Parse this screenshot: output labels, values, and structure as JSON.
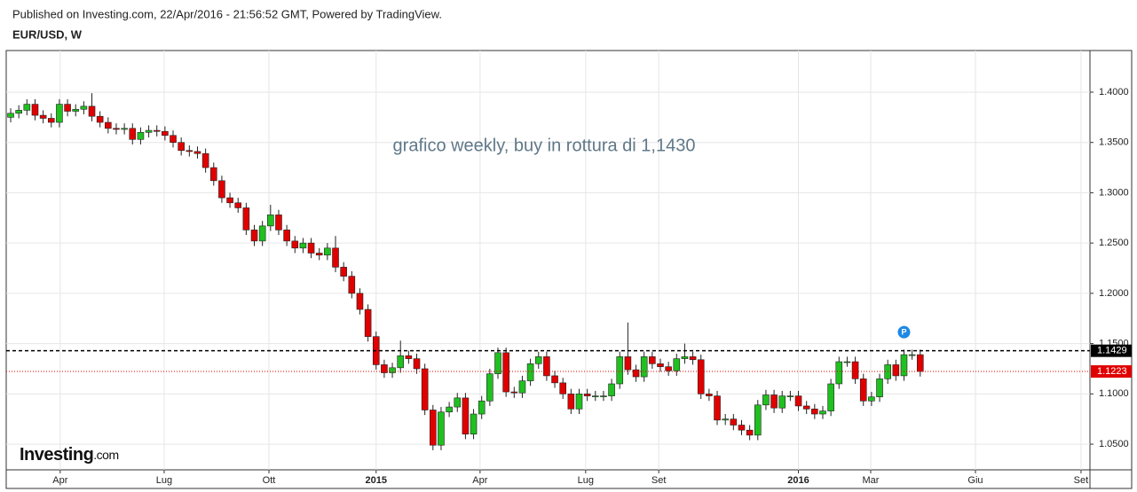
{
  "header": {
    "source": "Published on Investing.com, 22/Apr/2016 - 21:56:52 GMT, Powered by TradingView."
  },
  "chart_data": {
    "type": "candlestick",
    "title": "EUR/USD, W",
    "annotation": "grafico weekly, buy in rottura di 1,1430",
    "logo": {
      "name": "Investing",
      "suffix": ".com"
    },
    "up_color": "#20c020",
    "down_color": "#e00000",
    "grid": true,
    "open": [
      1.375,
      1.379,
      1.382,
      1.388,
      1.377,
      1.374,
      1.37,
      1.388,
      1.381,
      1.383,
      1.386,
      1.376,
      1.37,
      1.364,
      1.363,
      1.364,
      1.353,
      1.36,
      1.362,
      1.361,
      1.357,
      1.35,
      1.342,
      1.341,
      1.339,
      1.325,
      1.312,
      1.295,
      1.29,
      1.285,
      1.263,
      1.252,
      1.267,
      1.278,
      1.263,
      1.252,
      1.245,
      1.25,
      1.24,
      1.238,
      1.245,
      1.226,
      1.217,
      1.2,
      1.184,
      1.157,
      1.129,
      1.121,
      1.126,
      1.138,
      1.135,
      1.125,
      1.084,
      1.049,
      1.082,
      1.087,
      1.096,
      1.06,
      1.08,
      1.093,
      1.12,
      1.141,
      1.102,
      1.101,
      1.113,
      1.13,
      1.137,
      1.118,
      1.111,
      1.1,
      1.085,
      1.1,
      1.098,
      1.098,
      1.098,
      1.11,
      1.137,
      1.124,
      1.117,
      1.137,
      1.13,
      1.127,
      1.123,
      1.135,
      1.137,
      1.134,
      1.1,
      1.098,
      1.074,
      1.075,
      1.069,
      1.064,
      1.059,
      1.089,
      1.099,
      1.086,
      1.098,
      1.098,
      1.088,
      1.085,
      1.08,
      1.083,
      1.11,
      1.132,
      1.132,
      1.115,
      1.093,
      1.097,
      1.115,
      1.129,
      1.118,
      1.139,
      1.139
    ],
    "high": [
      1.384,
      1.387,
      1.393,
      1.393,
      1.382,
      1.379,
      1.393,
      1.393,
      1.388,
      1.391,
      1.399,
      1.381,
      1.375,
      1.369,
      1.369,
      1.369,
      1.365,
      1.367,
      1.367,
      1.366,
      1.362,
      1.355,
      1.347,
      1.346,
      1.344,
      1.33,
      1.317,
      1.3,
      1.295,
      1.29,
      1.268,
      1.272,
      1.288,
      1.283,
      1.268,
      1.257,
      1.255,
      1.255,
      1.245,
      1.25,
      1.257,
      1.231,
      1.222,
      1.205,
      1.189,
      1.162,
      1.134,
      1.131,
      1.153,
      1.143,
      1.14,
      1.13,
      1.089,
      1.087,
      1.092,
      1.101,
      1.101,
      1.085,
      1.098,
      1.125,
      1.146,
      1.146,
      1.107,
      1.118,
      1.135,
      1.142,
      1.142,
      1.123,
      1.116,
      1.105,
      1.105,
      1.105,
      1.103,
      1.103,
      1.115,
      1.142,
      1.171,
      1.129,
      1.142,
      1.142,
      1.135,
      1.132,
      1.14,
      1.15,
      1.142,
      1.139,
      1.105,
      1.103,
      1.08,
      1.08,
      1.074,
      1.069,
      1.094,
      1.104,
      1.104,
      1.103,
      1.103,
      1.103,
      1.093,
      1.09,
      1.088,
      1.115,
      1.137,
      1.137,
      1.137,
      1.12,
      1.102,
      1.12,
      1.134,
      1.134,
      1.144,
      1.144,
      1.144
    ],
    "low": [
      1.37,
      1.374,
      1.377,
      1.372,
      1.369,
      1.365,
      1.365,
      1.376,
      1.376,
      1.378,
      1.371,
      1.365,
      1.359,
      1.358,
      1.358,
      1.348,
      1.348,
      1.355,
      1.356,
      1.352,
      1.345,
      1.337,
      1.336,
      1.334,
      1.32,
      1.307,
      1.29,
      1.285,
      1.28,
      1.258,
      1.247,
      1.247,
      1.262,
      1.258,
      1.247,
      1.24,
      1.24,
      1.235,
      1.233,
      1.233,
      1.221,
      1.212,
      1.195,
      1.179,
      1.152,
      1.124,
      1.116,
      1.116,
      1.121,
      1.13,
      1.12,
      1.079,
      1.044,
      1.044,
      1.077,
      1.082,
      1.055,
      1.055,
      1.075,
      1.088,
      1.115,
      1.097,
      1.096,
      1.096,
      1.108,
      1.125,
      1.113,
      1.106,
      1.095,
      1.08,
      1.08,
      1.093,
      1.093,
      1.093,
      1.093,
      1.105,
      1.119,
      1.112,
      1.112,
      1.125,
      1.122,
      1.118,
      1.118,
      1.13,
      1.129,
      1.095,
      1.093,
      1.069,
      1.069,
      1.064,
      1.059,
      1.054,
      1.054,
      1.084,
      1.081,
      1.081,
      1.093,
      1.083,
      1.08,
      1.075,
      1.075,
      1.078,
      1.105,
      1.127,
      1.11,
      1.088,
      1.088,
      1.092,
      1.11,
      1.113,
      1.113,
      1.134,
      1.1173
    ],
    "close": [
      1.379,
      1.382,
      1.388,
      1.377,
      1.374,
      1.37,
      1.388,
      1.381,
      1.383,
      1.386,
      1.376,
      1.37,
      1.364,
      1.363,
      1.364,
      1.353,
      1.36,
      1.362,
      1.361,
      1.357,
      1.35,
      1.342,
      1.341,
      1.339,
      1.325,
      1.312,
      1.295,
      1.29,
      1.285,
      1.263,
      1.252,
      1.267,
      1.278,
      1.263,
      1.252,
      1.245,
      1.25,
      1.24,
      1.238,
      1.245,
      1.226,
      1.217,
      1.2,
      1.184,
      1.157,
      1.129,
      1.121,
      1.126,
      1.138,
      1.135,
      1.125,
      1.084,
      1.049,
      1.082,
      1.087,
      1.096,
      1.06,
      1.08,
      1.093,
      1.12,
      1.141,
      1.102,
      1.101,
      1.113,
      1.13,
      1.137,
      1.118,
      1.111,
      1.1,
      1.085,
      1.1,
      1.098,
      1.098,
      1.098,
      1.11,
      1.137,
      1.124,
      1.117,
      1.137,
      1.13,
      1.127,
      1.123,
      1.135,
      1.137,
      1.134,
      1.1,
      1.098,
      1.074,
      1.075,
      1.069,
      1.064,
      1.059,
      1.089,
      1.099,
      1.086,
      1.098,
      1.098,
      1.088,
      1.085,
      1.08,
      1.083,
      1.11,
      1.132,
      1.132,
      1.115,
      1.093,
      1.097,
      1.115,
      1.129,
      1.118,
      1.139,
      1.139,
      1.1223
    ],
    "xlim": [
      -0.55,
      132.9
    ],
    "xticks": [
      {
        "value": 6.1,
        "label": "Apr"
      },
      {
        "value": 18.9,
        "label": "Lug"
      },
      {
        "value": 31.8,
        "label": "Ott"
      },
      {
        "value": 45,
        "label": "2015",
        "bold": true
      },
      {
        "value": 57.8,
        "label": "Apr"
      },
      {
        "value": 70.8,
        "label": "Lug"
      },
      {
        "value": 79.8,
        "label": "Set"
      },
      {
        "value": 97,
        "label": "2016",
        "bold": true
      },
      {
        "value": 105.9,
        "label": "Mar"
      },
      {
        "value": 118.8,
        "label": "Giu"
      },
      {
        "value": 131.8,
        "label": "Set"
      }
    ],
    "ylim": [
      1.0245,
      1.4414
    ],
    "yticks": [
      {
        "value": 1.05,
        "label": "1.0500"
      },
      {
        "value": 1.1,
        "label": "1.1000"
      },
      {
        "value": 1.15,
        "label": "1.1500"
      },
      {
        "value": 1.2,
        "label": "1.2000"
      },
      {
        "value": 1.25,
        "label": "1.2500"
      },
      {
        "value": 1.3,
        "label": "1.3000"
      },
      {
        "value": 1.35,
        "label": "1.3500"
      },
      {
        "value": 1.4,
        "label": "1.4000"
      }
    ],
    "price_lines": [
      {
        "value": 1.1429,
        "color": "#000000",
        "dash": "4,3"
      },
      {
        "value": 1.1223,
        "color": "#e00000",
        "dash": "1,2"
      }
    ],
    "marker": {
      "label": "P",
      "x": 110,
      "value": 1.1614,
      "color": "#1e88e5"
    }
  }
}
